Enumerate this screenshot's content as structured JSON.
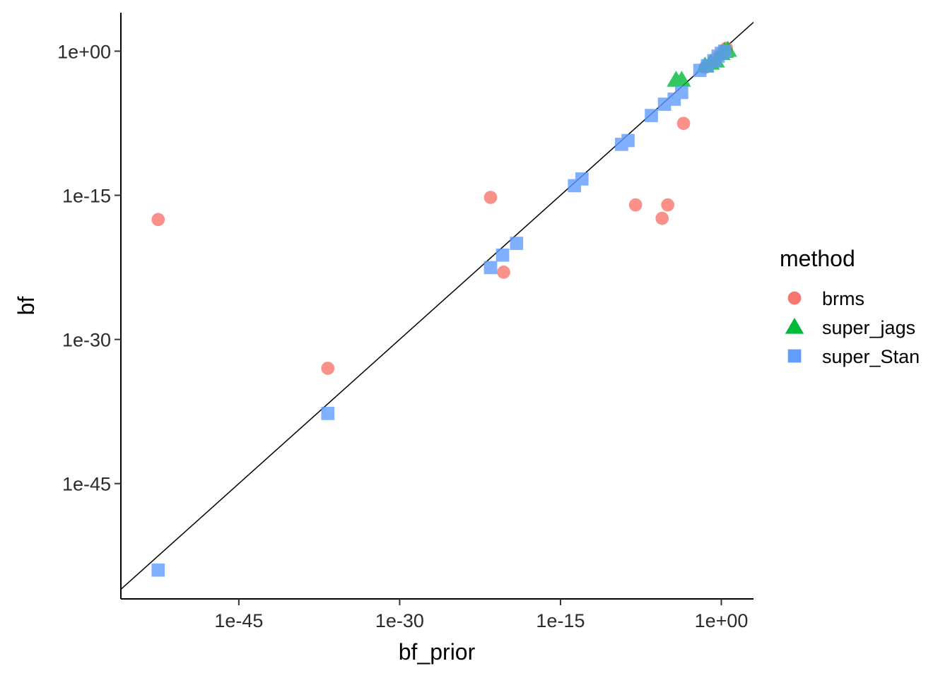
{
  "chart_data": {
    "type": "scatter",
    "xlabel": "bf_prior",
    "ylabel": "bf",
    "x_scale": "log10",
    "y_scale": "log10",
    "xlim": [
      "1e-56",
      "1e+3"
    ],
    "ylim": [
      "1e-57",
      "1e+4"
    ],
    "x_ticks": [
      {
        "value": 1e-45,
        "label": "1e-45"
      },
      {
        "value": 1e-30,
        "label": "1e-30"
      },
      {
        "value": 1e-15,
        "label": "1e-15"
      },
      {
        "value": 1,
        "label": "1e+00"
      }
    ],
    "y_ticks": [
      {
        "value": 1,
        "label": "1e+00"
      },
      {
        "value": 1e-15,
        "label": "1e-15"
      },
      {
        "value": 1e-30,
        "label": "1e-30"
      },
      {
        "value": 1e-45,
        "label": "1e-45"
      }
    ],
    "reference_line": {
      "type": "identity",
      "color": "#000000"
    },
    "grid": false,
    "legend": {
      "title": "method",
      "position": "right"
    },
    "series": [
      {
        "name": "brms",
        "color": "#F8766D",
        "marker": "circle",
        "points": [
          {
            "x": 3e-53,
            "y": 3e-18
          },
          {
            "x": 2e-37,
            "y": 1e-33
          },
          {
            "x": 3e-22,
            "y": 6e-16
          },
          {
            "x": 5e-21,
            "y": 1e-23
          },
          {
            "x": 1e-08,
            "y": 1e-16
          },
          {
            "x": 3e-06,
            "y": 4e-18
          },
          {
            "x": 1e-05,
            "y": 1e-16
          },
          {
            "x": 0.0003,
            "y": 3e-08
          },
          {
            "x": 0.03,
            "y": 0.02
          },
          {
            "x": 0.05,
            "y": 0.03
          },
          {
            "x": 0.2,
            "y": 0.1
          },
          {
            "x": 0.3,
            "y": 0.15
          },
          {
            "x": 0.7,
            "y": 0.4
          },
          {
            "x": 1.5,
            "y": 1
          },
          {
            "x": 3,
            "y": 2
          }
        ]
      },
      {
        "name": "super_jags",
        "color": "#00BA38",
        "marker": "triangle",
        "points": [
          {
            "x": 6e-05,
            "y": 0.001
          },
          {
            "x": 0.0002,
            "y": 0.001
          },
          {
            "x": 0.03,
            "y": 0.03
          },
          {
            "x": 0.1,
            "y": 0.06
          },
          {
            "x": 0.3,
            "y": 0.1
          },
          {
            "x": 1,
            "y": 0.6
          },
          {
            "x": 2,
            "y": 1
          },
          {
            "x": 4,
            "y": 1.3
          }
        ]
      },
      {
        "name": "super_Stan",
        "color": "#619CFF",
        "marker": "square",
        "points": [
          {
            "x": 3e-53,
            "y": 1e-54
          },
          {
            "x": 2e-37,
            "y": 2e-38
          },
          {
            "x": 3e-22,
            "y": 3e-23
          },
          {
            "x": 4e-21,
            "y": 6e-22
          },
          {
            "x": 8e-20,
            "y": 1e-20
          },
          {
            "x": 2e-14,
            "y": 1e-14
          },
          {
            "x": 1e-13,
            "y": 5e-14
          },
          {
            "x": 5e-10,
            "y": 2e-10
          },
          {
            "x": 2e-09,
            "y": 5e-10
          },
          {
            "x": 3e-07,
            "y": 2e-07
          },
          {
            "x": 5e-06,
            "y": 3e-06
          },
          {
            "x": 4e-05,
            "y": 1e-05
          },
          {
            "x": 0.0002,
            "y": 5e-05
          },
          {
            "x": 0.01,
            "y": 0.01
          },
          {
            "x": 0.05,
            "y": 0.03
          },
          {
            "x": 0.2,
            "y": 0.1
          },
          {
            "x": 0.5,
            "y": 0.3
          },
          {
            "x": 1,
            "y": 0.6
          },
          {
            "x": 2,
            "y": 1
          }
        ]
      }
    ]
  }
}
